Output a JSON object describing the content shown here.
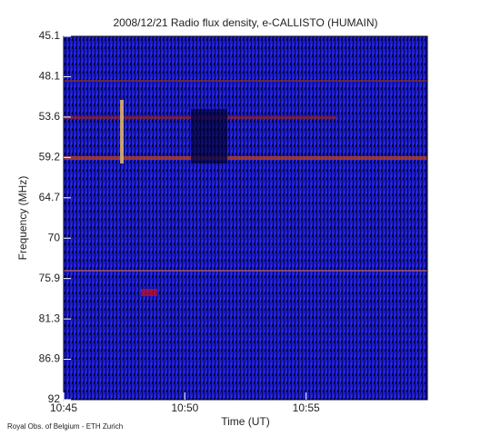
{
  "chart_data": {
    "type": "spectrogram",
    "title": "2008/12/21  Radio flux density, e-CALLISTO (HUMAIN)",
    "x_label": "Time (UT)",
    "y_label": "Frequency (MHz)",
    "footer": "Royal Obs. of Belgium - ETH Zurich",
    "xlim": [
      0,
      15
    ],
    "xticks": [
      {
        "value": 0,
        "label": "10:45"
      },
      {
        "value": 5,
        "label": "10:50"
      },
      {
        "value": 10,
        "label": "10:55"
      }
    ],
    "ylim": [
      45.1,
      92.0
    ],
    "yticks": [
      45.1,
      48.1,
      53.6,
      59.2,
      64.7,
      70.0,
      75.9,
      81.3,
      86.9,
      92.0
    ]
  }
}
